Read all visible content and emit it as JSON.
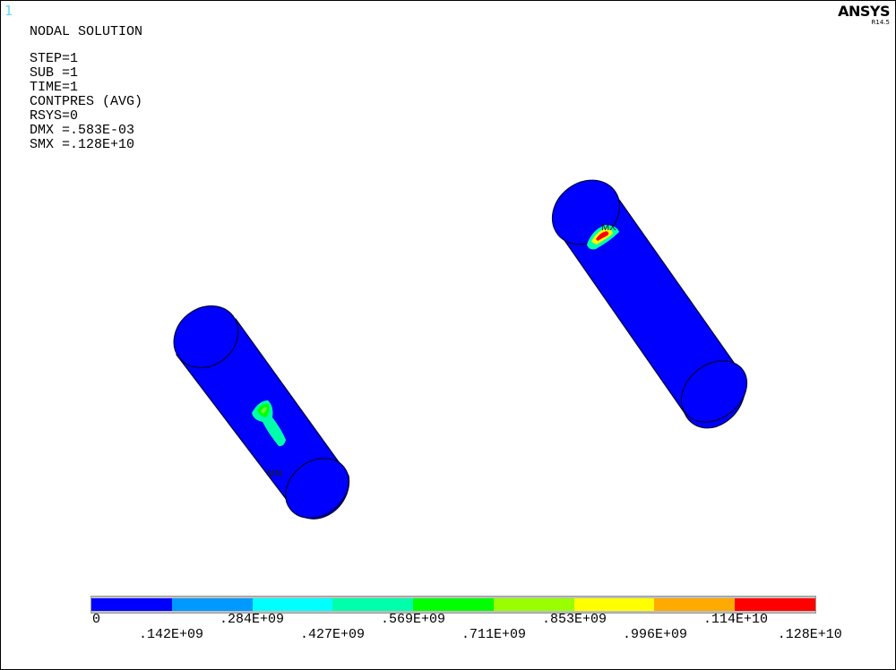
{
  "window": {
    "number": "1"
  },
  "brand": {
    "name": "ANSYS",
    "version": "R14.5"
  },
  "info": {
    "title": "NODAL SOLUTION",
    "lines": [
      "STEP=1",
      "SUB =1",
      "TIME=1",
      "CONTPRES (AVG)",
      "RSYS=0",
      "DMX =.583E-03",
      "SMX =.128E+10"
    ]
  },
  "markers": {
    "min": "MN",
    "max": "MX"
  },
  "legend": {
    "colors": [
      "#0000ff",
      "#0099ff",
      "#00ffff",
      "#00ffaa",
      "#00ff00",
      "#99ff00",
      "#ffff00",
      "#ffaa00",
      "#ff0000"
    ],
    "labels_top": [
      "0",
      ".284E+09",
      ".569E+09",
      ".853E+09",
      ".114E+10"
    ],
    "labels_bottom": [
      ".142E+09",
      ".427E+09",
      ".711E+09",
      ".996E+09",
      ".128E+10"
    ]
  }
}
